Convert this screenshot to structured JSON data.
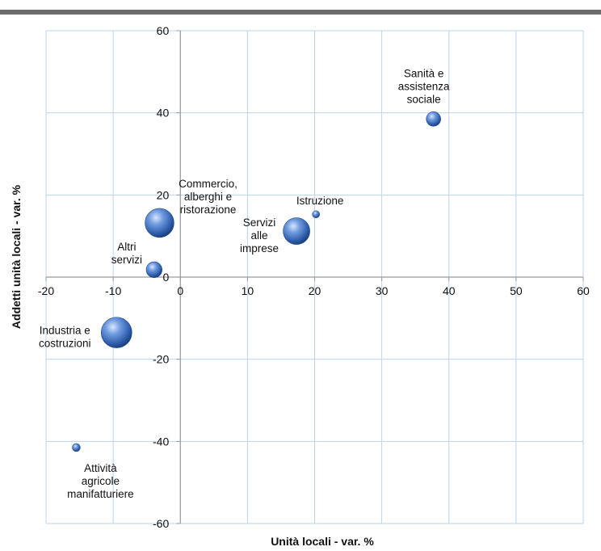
{
  "chart_data": {
    "type": "bubble",
    "title": "",
    "xlabel": "Unità locali  - var. %",
    "ylabel": "Addetti unità locali - var. %",
    "xlim": [
      -20,
      60
    ],
    "ylim": [
      -60,
      60
    ],
    "xticks": [
      -20,
      -10,
      0,
      10,
      20,
      30,
      40,
      50,
      60
    ],
    "yticks": [
      -60,
      -40,
      -20,
      0,
      20,
      40,
      60
    ],
    "grid": true,
    "points": [
      {
        "label": [
          "Sanità e",
          "assistenza",
          "sociale"
        ],
        "x": 37.7,
        "y": 38.5,
        "size": 1
      },
      {
        "label": [
          "Istruzione"
        ],
        "x": 20.2,
        "y": 15.3,
        "size": 0.25
      },
      {
        "label": [
          "Commercio,",
          "alberghi e",
          "ristorazione"
        ],
        "x": -3.1,
        "y": 13.2,
        "size": 4
      },
      {
        "label": [
          "Servizi",
          "alle",
          "imprese"
        ],
        "x": 17.3,
        "y": 11.2,
        "size": 3.4
      },
      {
        "label": [
          "Altri",
          "servizi"
        ],
        "x": -3.9,
        "y": 1.8,
        "size": 1.2
      },
      {
        "label": [
          "Industria e",
          "costruzioni"
        ],
        "x": -9.5,
        "y": -13.5,
        "size": 4.5
      },
      {
        "label": [
          "Attività",
          "agricole",
          "manifatturiere"
        ],
        "x": -15.5,
        "y": -41.5,
        "size": 0.3
      }
    ]
  }
}
